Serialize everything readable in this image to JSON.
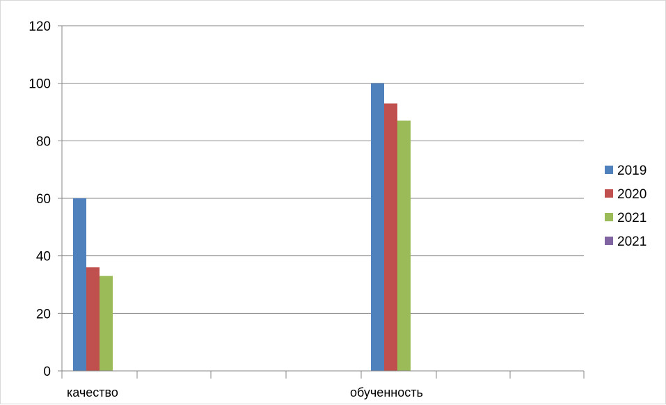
{
  "chart_data": {
    "type": "bar",
    "title": "",
    "xlabel": "",
    "ylabel": "",
    "categories": [
      "качество",
      "обученность"
    ],
    "series": [
      {
        "name": "2019",
        "color": "#4f81bd",
        "values": [
          60,
          100
        ]
      },
      {
        "name": "2020",
        "color": "#c0504d",
        "values": [
          36,
          93
        ]
      },
      {
        "name": "2021",
        "color": "#9bbb59",
        "values": [
          33,
          87
        ]
      },
      {
        "name": "2021",
        "color": "#8064a2",
        "values": [
          0,
          0
        ]
      }
    ],
    "ylim": [
      0,
      120
    ],
    "yticks": [
      "0",
      "20",
      "40",
      "60",
      "80",
      "100",
      "120"
    ],
    "grid": true,
    "legend_position": "right"
  }
}
